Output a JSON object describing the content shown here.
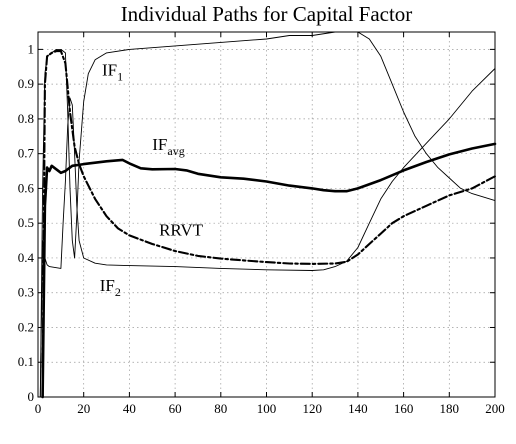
{
  "chart_data": {
    "type": "line",
    "title": "Individual Paths for Capital Factor",
    "xlabel": "",
    "ylabel": "",
    "xlim": [
      0,
      200
    ],
    "ylim": [
      0,
      1.05
    ],
    "x_ticks": [
      0,
      20,
      40,
      60,
      80,
      100,
      120,
      140,
      160,
      180,
      200
    ],
    "x_tick_labels": [
      "0",
      "20",
      "40",
      "60",
      "80",
      "100",
      "120",
      "140",
      "160",
      "180",
      "200"
    ],
    "y_ticks": [
      0,
      0.1,
      0.2,
      0.3,
      0.4,
      0.5,
      0.6,
      0.7,
      0.8,
      0.9,
      1
    ],
    "y_tick_labels": [
      "0",
      "0.1",
      "0.2",
      "0.3",
      "0.4",
      "0.5",
      "0.6",
      "0.7",
      "0.8",
      "0.9",
      "1"
    ],
    "grid": true,
    "series": [
      {
        "name": "IF1",
        "style": "thin-solid",
        "color": "#000000",
        "points": [
          [
            1,
            0
          ],
          [
            2,
            0.6
          ],
          [
            3,
            0.93
          ],
          [
            4,
            0.98
          ],
          [
            6,
            0.99
          ],
          [
            8,
            1.0
          ],
          [
            10,
            1.0
          ],
          [
            12,
            0.99
          ],
          [
            13,
            0.82
          ],
          [
            14,
            0.6
          ],
          [
            15,
            0.45
          ],
          [
            16,
            0.4
          ],
          [
            17,
            0.52
          ],
          [
            18,
            0.68
          ],
          [
            20,
            0.85
          ],
          [
            22,
            0.93
          ],
          [
            25,
            0.97
          ],
          [
            30,
            0.99
          ],
          [
            40,
            1.0
          ],
          [
            60,
            1.01
          ],
          [
            80,
            1.02
          ],
          [
            100,
            1.03
          ],
          [
            110,
            1.04
          ],
          [
            120,
            1.04
          ],
          [
            130,
            1.05
          ],
          [
            140,
            1.05
          ],
          [
            145,
            1.03
          ],
          [
            150,
            0.98
          ],
          [
            155,
            0.9
          ],
          [
            160,
            0.82
          ],
          [
            165,
            0.75
          ],
          [
            170,
            0.7
          ],
          [
            175,
            0.66
          ],
          [
            180,
            0.63
          ],
          [
            185,
            0.6
          ],
          [
            190,
            0.585
          ],
          [
            195,
            0.575
          ],
          [
            200,
            0.565
          ]
        ]
      },
      {
        "name": "IF2",
        "style": "thin-solid",
        "color": "#000000",
        "points": [
          [
            1,
            0
          ],
          [
            2,
            0.45
          ],
          [
            3,
            0.4
          ],
          [
            4,
            0.38
          ],
          [
            5,
            0.375
          ],
          [
            8,
            0.372
          ],
          [
            10,
            0.37
          ],
          [
            11,
            0.5
          ],
          [
            12,
            0.62
          ],
          [
            13,
            0.78
          ],
          [
            14,
            0.86
          ],
          [
            15,
            0.84
          ],
          [
            16,
            0.7
          ],
          [
            17,
            0.55
          ],
          [
            18,
            0.45
          ],
          [
            20,
            0.4
          ],
          [
            25,
            0.385
          ],
          [
            30,
            0.38
          ],
          [
            40,
            0.378
          ],
          [
            60,
            0.375
          ],
          [
            80,
            0.37
          ],
          [
            100,
            0.366
          ],
          [
            120,
            0.364
          ],
          [
            125,
            0.366
          ],
          [
            130,
            0.375
          ],
          [
            135,
            0.39
          ],
          [
            140,
            0.43
          ],
          [
            145,
            0.5
          ],
          [
            150,
            0.57
          ],
          [
            155,
            0.62
          ],
          [
            160,
            0.66
          ],
          [
            170,
            0.73
          ],
          [
            180,
            0.8
          ],
          [
            190,
            0.88
          ],
          [
            200,
            0.945
          ]
        ]
      },
      {
        "name": "IFavg",
        "style": "thick-solid",
        "color": "#000000",
        "points": [
          [
            2,
            0
          ],
          [
            3,
            0.55
          ],
          [
            4,
            0.66
          ],
          [
            5,
            0.65
          ],
          [
            6,
            0.665
          ],
          [
            8,
            0.655
          ],
          [
            10,
            0.645
          ],
          [
            12,
            0.65
          ],
          [
            15,
            0.665
          ],
          [
            20,
            0.67
          ],
          [
            30,
            0.678
          ],
          [
            37,
            0.682
          ],
          [
            40,
            0.672
          ],
          [
            45,
            0.658
          ],
          [
            50,
            0.655
          ],
          [
            60,
            0.656
          ],
          [
            65,
            0.652
          ],
          [
            70,
            0.642
          ],
          [
            80,
            0.632
          ],
          [
            90,
            0.628
          ],
          [
            100,
            0.62
          ],
          [
            110,
            0.608
          ],
          [
            120,
            0.6
          ],
          [
            125,
            0.595
          ],
          [
            130,
            0.592
          ],
          [
            135,
            0.592
          ],
          [
            140,
            0.6
          ],
          [
            150,
            0.624
          ],
          [
            160,
            0.652
          ],
          [
            170,
            0.676
          ],
          [
            180,
            0.698
          ],
          [
            190,
            0.715
          ],
          [
            200,
            0.728
          ]
        ]
      },
      {
        "name": "RRVT",
        "style": "dash-dot",
        "color": "#000000",
        "points": [
          [
            2,
            0
          ],
          [
            3,
            0.9
          ],
          [
            4,
            0.98
          ],
          [
            6,
            0.99
          ],
          [
            8,
            0.995
          ],
          [
            10,
            0.995
          ],
          [
            12,
            0.96
          ],
          [
            14,
            0.82
          ],
          [
            16,
            0.72
          ],
          [
            18,
            0.67
          ],
          [
            20,
            0.635
          ],
          [
            25,
            0.57
          ],
          [
            30,
            0.52
          ],
          [
            35,
            0.485
          ],
          [
            40,
            0.465
          ],
          [
            50,
            0.44
          ],
          [
            60,
            0.42
          ],
          [
            70,
            0.406
          ],
          [
            80,
            0.398
          ],
          [
            90,
            0.393
          ],
          [
            100,
            0.388
          ],
          [
            110,
            0.384
          ],
          [
            120,
            0.383
          ],
          [
            130,
            0.384
          ],
          [
            135,
            0.389
          ],
          [
            140,
            0.41
          ],
          [
            145,
            0.44
          ],
          [
            150,
            0.47
          ],
          [
            155,
            0.5
          ],
          [
            160,
            0.52
          ],
          [
            170,
            0.55
          ],
          [
            180,
            0.58
          ],
          [
            190,
            0.6
          ],
          [
            200,
            0.635
          ]
        ]
      }
    ],
    "annotations": [
      {
        "id": "if1",
        "main": "IF",
        "sub": "1",
        "x": 28,
        "y": 0.925
      },
      {
        "id": "ifavg",
        "main": "IF",
        "sub": "avg",
        "x": 50,
        "y": 0.71
      },
      {
        "id": "rrvt",
        "main": "RRVT",
        "sub": "",
        "x": 53,
        "y": 0.465
      },
      {
        "id": "if2",
        "main": "IF",
        "sub": "2",
        "x": 27,
        "y": 0.305
      }
    ]
  }
}
